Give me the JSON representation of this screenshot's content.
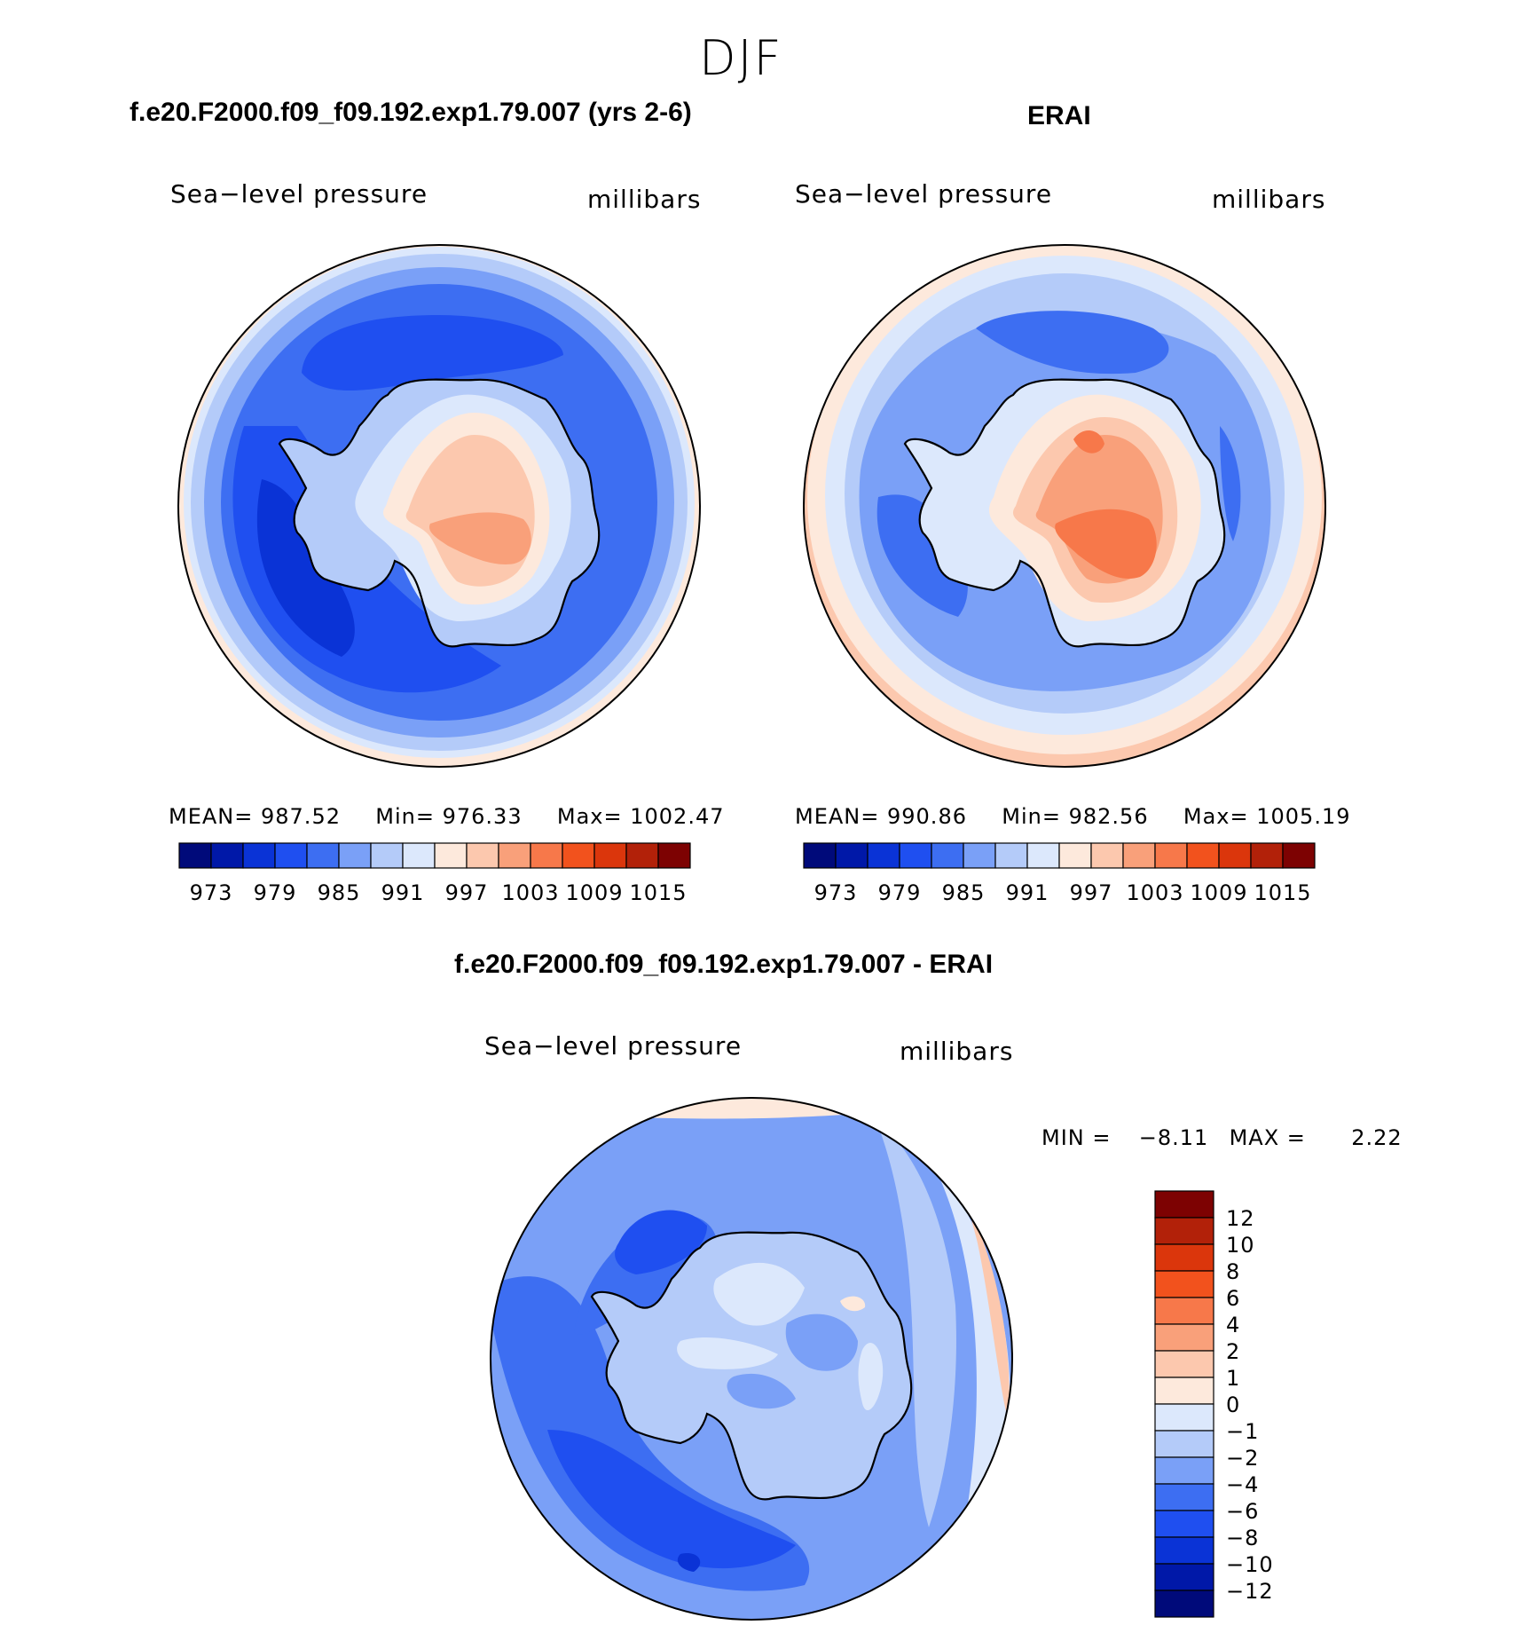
{
  "figure": {
    "season": "DJF"
  },
  "panels": [
    {
      "title": "f.e20.F2000.f09_f09.192.exp1.79.007 (yrs 2-6)",
      "variable": "Sea−level pressure",
      "units": "millibars",
      "stats": {
        "mean_label": "MEAN=",
        "mean": "987.52",
        "min_label": "Min=",
        "min": "976.33",
        "max_label": "Max=",
        "max": "1002.47"
      }
    },
    {
      "title": "ERAI",
      "variable": "Sea−level pressure",
      "units": "millibars",
      "stats": {
        "mean_label": "MEAN=",
        "mean": "990.86",
        "min_label": "Min=",
        "min": "982.56",
        "max_label": "Max=",
        "max": "1005.19"
      }
    },
    {
      "title": "f.e20.F2000.f09_f09.192.exp1.79.007 - ERAI",
      "variable": "Sea−level pressure",
      "units": "millibars",
      "stats": {
        "min_label": "MIN =",
        "min": "−8.11",
        "max_label": "MAX =",
        "max": "2.22"
      }
    }
  ],
  "colorbar_top": {
    "colors": [
      "#000a7a",
      "#0018a8",
      "#0a33d6",
      "#1f4ff0",
      "#3d6ef2",
      "#7aa0f7",
      "#b4cbf9",
      "#dce8fc",
      "#fde9dc",
      "#fcc8ae",
      "#f9a07a",
      "#f7784a",
      "#f2521d",
      "#db360c",
      "#b22109",
      "#7d0202"
    ],
    "tick_labels": [
      "973",
      "979",
      "985",
      "991",
      "997",
      "1003",
      "1009",
      "1015"
    ]
  },
  "colorbar_diff": {
    "colors_top_to_bottom": [
      "#7d0202",
      "#b22109",
      "#db360c",
      "#f2521d",
      "#f7784a",
      "#f9a07a",
      "#fcc8ae",
      "#fde9dc",
      "#dce8fc",
      "#b4cbf9",
      "#7aa0f7",
      "#3d6ef2",
      "#1f4ff0",
      "#0a33d6",
      "#0018a8",
      "#000a7a"
    ],
    "tick_labels": [
      "12",
      "10",
      "8",
      "6",
      "4",
      "2",
      "1",
      "0",
      "−1",
      "−2",
      "−4",
      "−6",
      "−8",
      "−10",
      "−12"
    ]
  },
  "map_colors": {
    "c_deep": "#0a33d6",
    "c_strong": "#1f4ff0",
    "c_mid": "#3d6ef2",
    "c_light": "#7aa0f7",
    "c_pale": "#b4cbf9",
    "c_paler": "#dce8fc",
    "c_warm0": "#fde9dc",
    "c_warm1": "#fcc8ae",
    "c_warm2": "#f9a07a",
    "c_warm3": "#f7784a"
  }
}
